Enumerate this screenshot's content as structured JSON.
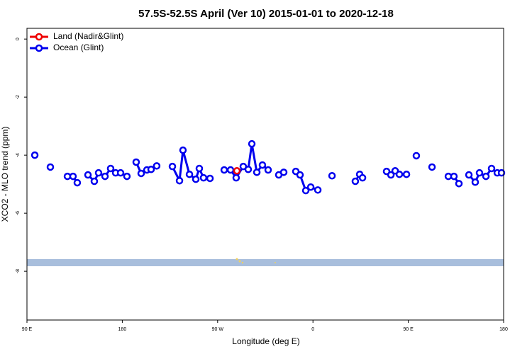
{
  "chart_data": {
    "type": "line",
    "title": "57.5S-52.5S April (Ver 10)   2015-01-01 to 2020-12-18",
    "x_label": "Longitude (deg E)",
    "y_label": "XCO2 - MLO trend (ppm)",
    "xlim": [
      90,
      540
    ],
    "ylim": [
      -9.68,
      0.37
    ],
    "xticks": [
      {
        "value": 90,
        "label": "90 E"
      },
      {
        "value": 180,
        "label": "180"
      },
      {
        "value": 270,
        "label": "90 W"
      },
      {
        "value": 360,
        "label": "0"
      },
      {
        "value": 450,
        "label": "90 E"
      },
      {
        "value": 540,
        "label": "180"
      }
    ],
    "yticks": [
      0,
      -2,
      -4,
      -6,
      -8
    ],
    "legend": "top-left",
    "series": [
      {
        "name": "Land (Nadir&Glint)",
        "color": "#ee0000",
        "x": [
          288.2
        ],
        "values": [
          -4.54
        ]
      },
      {
        "name": "Ocean (Glint)",
        "color": "#0000ee",
        "x": [
          97.4,
          null,
          112.1,
          null,
          128.2,
          133.5,
          137.5,
          null,
          147.6,
          153.6,
          157.6,
          163.7,
          169.0,
          173.7,
          178.4,
          184.4,
          null,
          193.1,
          197.8,
          203.2,
          207.2,
          212.5,
          null,
          227.3,
          234.0,
          237.3,
          243.4,
          249.4,
          252.7,
          256.7,
          262.8,
          null,
          276.2,
          282.2,
          287.5,
          294.2,
          298.9,
          302.3,
          307.0,
          312.3,
          317.7,
          null,
          327.7,
          332.4,
          null,
          343.8,
          347.8,
          353.2,
          357.9,
          364.6,
          null,
          378.0,
          null,
          400.0,
          404.1,
          406.8,
          null,
          429.5,
          433.6,
          437.6,
          441.6,
          448.3,
          null,
          457.6,
          null,
          472.4,
          null,
          487.8,
          493.1,
          497.8,
          null,
          507.2,
          513.2,
          517.2,
          523.3,
          528.6,
          534.0,
          538.0
        ],
        "values": [
          -4.0,
          null,
          -4.41,
          null,
          -4.73,
          -4.73,
          -4.95,
          null,
          -4.68,
          -4.9,
          -4.61,
          -4.73,
          -4.46,
          -4.61,
          -4.61,
          -4.73,
          null,
          -4.24,
          -4.63,
          -4.51,
          -4.49,
          -4.37,
          null,
          -4.39,
          -4.88,
          -3.83,
          -4.66,
          -4.83,
          -4.46,
          -4.78,
          -4.8,
          null,
          -4.51,
          -4.51,
          -4.78,
          -4.39,
          -4.49,
          -3.61,
          -4.59,
          -4.34,
          -4.51,
          null,
          -4.68,
          -4.59,
          null,
          -4.56,
          -4.68,
          -5.22,
          -5.1,
          -5.2,
          null,
          -4.71,
          null,
          -4.9,
          -4.66,
          -4.78,
          null,
          -4.56,
          -4.68,
          -4.54,
          -4.66,
          -4.66,
          null,
          -4.02,
          null,
          -4.41,
          null,
          -4.73,
          -4.73,
          -4.98,
          null,
          -4.68,
          -4.93,
          -4.61,
          -4.73,
          -4.46,
          -4.61,
          -4.61
        ]
      }
    ]
  }
}
